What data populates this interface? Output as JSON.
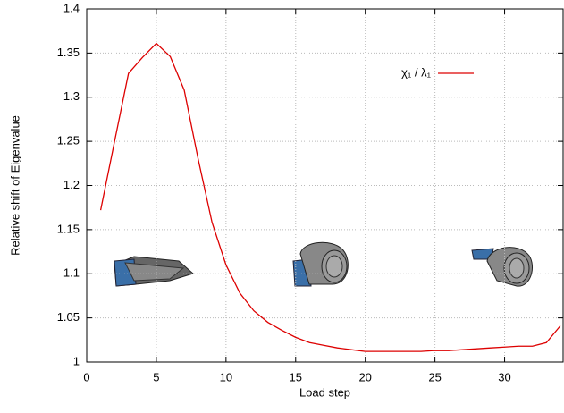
{
  "chart_data": {
    "type": "line",
    "x_label": "Load step",
    "y_label": "Relative shift of Eigenvalue",
    "x": [
      1,
      2,
      3,
      4,
      5,
      6,
      7,
      8,
      9,
      10,
      11,
      12,
      13,
      14,
      15,
      16,
      17,
      18,
      19,
      20,
      21,
      22,
      23,
      24,
      25,
      26,
      27,
      28,
      29,
      30,
      31,
      32,
      33,
      34
    ],
    "series": [
      {
        "name": "χ₁ / λ₁",
        "color": "#dd0000",
        "values": [
          1.172,
          1.25,
          1.327,
          1.345,
          1.361,
          1.346,
          1.308,
          1.23,
          1.158,
          1.11,
          1.078,
          1.058,
          1.045,
          1.036,
          1.028,
          1.022,
          1.019,
          1.016,
          1.014,
          1.012,
          1.012,
          1.012,
          1.012,
          1.012,
          1.013,
          1.013,
          1.014,
          1.015,
          1.016,
          1.017,
          1.018,
          1.018,
          1.022,
          1.041
        ]
      }
    ],
    "xlim": [
      0,
      34.2
    ],
    "xticks": [
      0,
      5,
      10,
      15,
      20,
      25,
      30
    ],
    "ylim": [
      1,
      1.4
    ],
    "yticks": [
      1,
      1.05,
      1.1,
      1.15,
      1.2,
      1.25,
      1.3,
      1.35,
      1.4
    ],
    "grid": true,
    "legend": "top-right"
  }
}
